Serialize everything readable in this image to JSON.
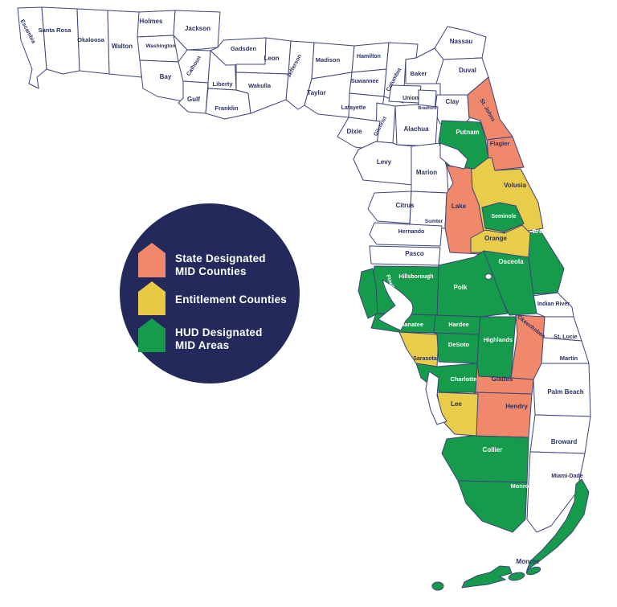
{
  "page": {
    "background": "#FFFFFF"
  },
  "legend": {
    "circle_color": "#232A5B",
    "text_color": "#FFFFFF",
    "items": [
      {
        "id": "state-mid",
        "lines": [
          "State Designated",
          "MID Counties"
        ],
        "color": "#F0886C"
      },
      {
        "id": "entitlement",
        "lines": [
          "Entitlement Counties"
        ],
        "color": "#E8C944"
      },
      {
        "id": "hud-mid",
        "lines": [
          "HUD Designated",
          "MID Areas"
        ],
        "color": "#159B4B"
      }
    ]
  },
  "map": {
    "region": "Florida counties",
    "border_color": "#3B4378",
    "category_colors": {
      "state": "#F0886C",
      "entitlement": "#E9CC4A",
      "hud": "#159B4B",
      "none": "#FFFFFF"
    },
    "label_colors": {
      "default": "#2B3164",
      "on_green": "#FFFFFF"
    },
    "monroe_keys_label": "Monroe",
    "counties": [
      {
        "id": "escambia",
        "name": "Escambia",
        "category": "none"
      },
      {
        "id": "santa-rosa",
        "name": "Santa Rosa",
        "category": "none"
      },
      {
        "id": "okaloosa",
        "name": "Okaloosa",
        "category": "none"
      },
      {
        "id": "walton",
        "name": "Walton",
        "category": "none"
      },
      {
        "id": "holmes",
        "name": "Holmes",
        "category": "none"
      },
      {
        "id": "washington",
        "name": "Washington",
        "category": "none"
      },
      {
        "id": "jackson",
        "name": "Jackson",
        "category": "none"
      },
      {
        "id": "bay",
        "name": "Bay",
        "category": "none"
      },
      {
        "id": "calhoun",
        "name": "Calhoun",
        "category": "none"
      },
      {
        "id": "gulf",
        "name": "Gulf",
        "category": "none"
      },
      {
        "id": "liberty",
        "name": "Liberty",
        "category": "none"
      },
      {
        "id": "franklin",
        "name": "Franklin",
        "category": "none"
      },
      {
        "id": "gadsden",
        "name": "Gadsden",
        "category": "none"
      },
      {
        "id": "leon",
        "name": "Leon",
        "category": "none"
      },
      {
        "id": "wakulla",
        "name": "Wakulla",
        "category": "none"
      },
      {
        "id": "jefferson",
        "name": "Jefferson",
        "category": "none"
      },
      {
        "id": "madison",
        "name": "Madison",
        "category": "none"
      },
      {
        "id": "taylor",
        "name": "Taylor",
        "category": "none"
      },
      {
        "id": "hamilton",
        "name": "Hamilton",
        "category": "none"
      },
      {
        "id": "suwannee",
        "name": "Suwannee",
        "category": "none"
      },
      {
        "id": "lafayette",
        "name": "Lafayette",
        "category": "none"
      },
      {
        "id": "columbia",
        "name": "Columbia",
        "category": "none"
      },
      {
        "id": "baker",
        "name": "Baker",
        "category": "none"
      },
      {
        "id": "union",
        "name": "Union",
        "category": "none"
      },
      {
        "id": "bradford",
        "name": "Bradford",
        "category": "none"
      },
      {
        "id": "nassau",
        "name": "Nassau",
        "category": "none"
      },
      {
        "id": "duval",
        "name": "Duval",
        "category": "none"
      },
      {
        "id": "clay",
        "name": "Clay",
        "category": "none"
      },
      {
        "id": "alachua",
        "name": "Alachua",
        "category": "none"
      },
      {
        "id": "gilchrist",
        "name": "Gilchrist",
        "category": "none"
      },
      {
        "id": "dixie",
        "name": "Dixie",
        "category": "none"
      },
      {
        "id": "levy",
        "name": "Levy",
        "category": "none"
      },
      {
        "id": "marion",
        "name": "Marion",
        "category": "none"
      },
      {
        "id": "citrus",
        "name": "Citrus",
        "category": "none"
      },
      {
        "id": "sumter",
        "name": "Sumter",
        "category": "none"
      },
      {
        "id": "hernando",
        "name": "Hernando",
        "category": "none"
      },
      {
        "id": "pasco",
        "name": "Pasco",
        "category": "none"
      },
      {
        "id": "indian-river",
        "name": "Indian River",
        "category": "none"
      },
      {
        "id": "st-lucie",
        "name": "St. Lucie",
        "category": "none"
      },
      {
        "id": "martin",
        "name": "Martin",
        "category": "none"
      },
      {
        "id": "palm-beach",
        "name": "Palm Beach",
        "category": "none"
      },
      {
        "id": "broward",
        "name": "Broward",
        "category": "none"
      },
      {
        "id": "miami-dade",
        "name": "Miami-Dade",
        "category": "none"
      },
      {
        "id": "st-johns",
        "name": "St. Johns",
        "category": "state"
      },
      {
        "id": "flagler",
        "name": "Flagler",
        "category": "state"
      },
      {
        "id": "lake",
        "name": "Lake",
        "category": "state"
      },
      {
        "id": "okeechobee",
        "name": "Okeechobee",
        "category": "state"
      },
      {
        "id": "glades",
        "name": "Glades",
        "category": "state"
      },
      {
        "id": "hendry",
        "name": "Hendry",
        "category": "state"
      },
      {
        "id": "volusia",
        "name": "Volusia",
        "category": "entitlement"
      },
      {
        "id": "orange",
        "name": "Orange",
        "category": "entitlement"
      },
      {
        "id": "sarasota",
        "name": "Sarasota",
        "category": "entitlement"
      },
      {
        "id": "lee",
        "name": "Lee",
        "category": "entitlement"
      },
      {
        "id": "putnam",
        "name": "Putnam",
        "category": "hud"
      },
      {
        "id": "seminole",
        "name": "Seminole",
        "category": "hud"
      },
      {
        "id": "brevard",
        "name": "Brevard",
        "category": "hud"
      },
      {
        "id": "osceola",
        "name": "Osceola",
        "category": "hud"
      },
      {
        "id": "polk",
        "name": "Polk",
        "category": "hud"
      },
      {
        "id": "hillsborough",
        "name": "Hillsborough",
        "category": "hud"
      },
      {
        "id": "pinellas",
        "name": "Pinellas",
        "category": "hud"
      },
      {
        "id": "manatee",
        "name": "Manatee",
        "category": "hud"
      },
      {
        "id": "hardee",
        "name": "Hardee",
        "category": "hud"
      },
      {
        "id": "desoto",
        "name": "DeSoto",
        "category": "hud"
      },
      {
        "id": "highlands",
        "name": "Highlands",
        "category": "hud"
      },
      {
        "id": "charlotte",
        "name": "Charlotte",
        "category": "hud"
      },
      {
        "id": "collier",
        "name": "Collier",
        "category": "hud"
      },
      {
        "id": "monroe",
        "name": "Monroe",
        "category": "hud"
      }
    ]
  }
}
